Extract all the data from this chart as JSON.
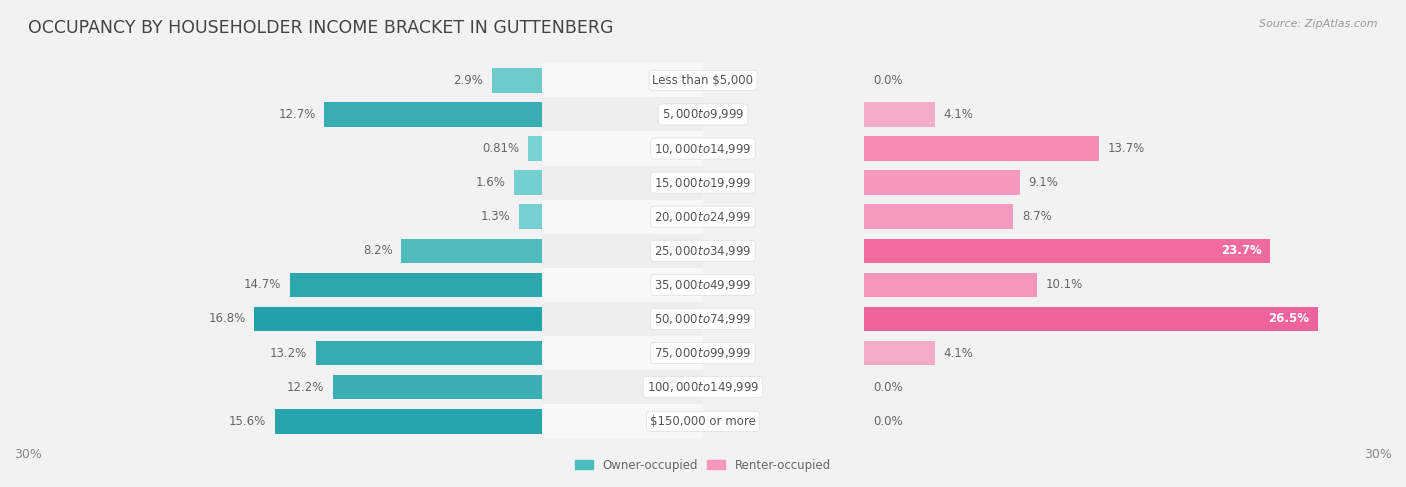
{
  "title": "OCCUPANCY BY HOUSEHOLDER INCOME BRACKET IN GUTTENBERG",
  "source": "Source: ZipAtlas.com",
  "categories": [
    "Less than $5,000",
    "$5,000 to $9,999",
    "$10,000 to $14,999",
    "$15,000 to $19,999",
    "$20,000 to $24,999",
    "$25,000 to $34,999",
    "$35,000 to $49,999",
    "$50,000 to $74,999",
    "$75,000 to $99,999",
    "$100,000 to $149,999",
    "$150,000 or more"
  ],
  "owner_values": [
    2.9,
    12.7,
    0.81,
    1.6,
    1.3,
    8.2,
    14.7,
    16.8,
    13.2,
    12.2,
    15.6
  ],
  "renter_values": [
    0.0,
    4.1,
    13.7,
    9.1,
    8.7,
    23.7,
    10.1,
    26.5,
    4.1,
    0.0,
    0.0
  ],
  "owner_color_light": "#7dd4d4",
  "owner_color_dark": "#3ab3b3",
  "renter_color_light": "#f7b8cf",
  "renter_color_dark": "#f07baa",
  "bg_color": "#f2f2f2",
  "row_colors": [
    "#f8f8f8",
    "#eeeeee"
  ],
  "label_bg": "#ffffff",
  "xlim": 30.0,
  "label_fontsize": 8.5,
  "category_fontsize": 8.5,
  "title_fontsize": 12.5,
  "source_fontsize": 8,
  "legend_fontsize": 8.5,
  "axis_label_fontsize": 9,
  "value_fontsize": 8.5
}
